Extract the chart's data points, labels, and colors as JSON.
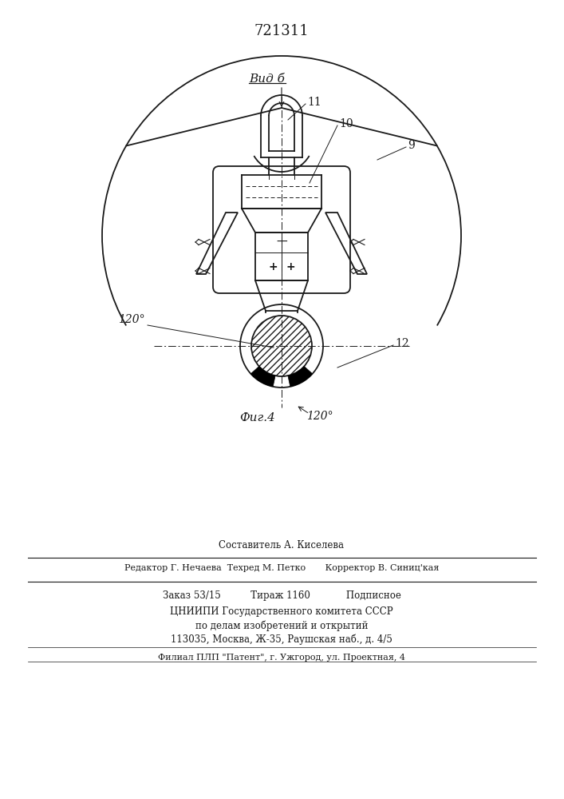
{
  "patent_number": "721311",
  "view_label": "Вид б",
  "fig_label": "Фиг.4",
  "label_120_left": "120°",
  "label_120_right": "120°",
  "footer_line1": "Составитель А. Киселева",
  "footer_line2": "Редактор Г. Нечаева  Техред М. Петко       Корректор В. Синиц'кая",
  "footer_line3": "Заказ 53/15          Тираж 1160            Подписное",
  "footer_line4": "ЦНИИПИ Государственного комитета СССР",
  "footer_line5": "по делам изобретений и открытий",
  "footer_line6": "113035, Москва, Ж-35, Раушская наб., д. 4/5",
  "footer_line7": "Филиал ПЛП \"Патент\", г. Ужгород, ул. Проектная, 4",
  "line_color": "#1a1a1a"
}
